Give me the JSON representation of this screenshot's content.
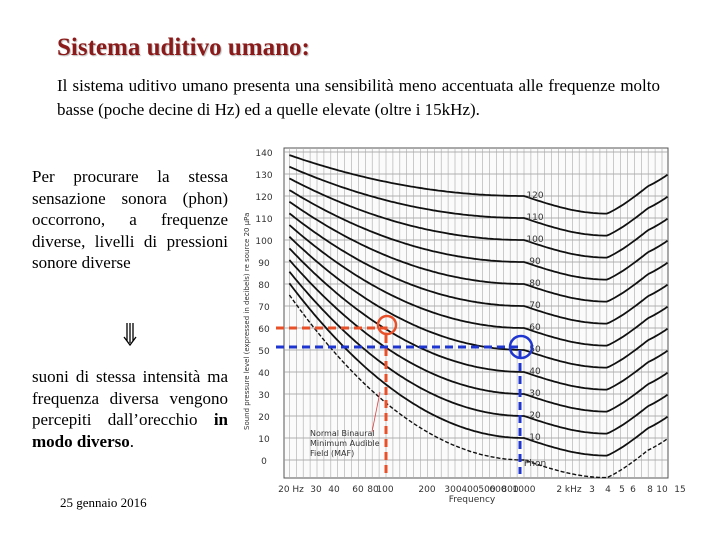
{
  "title": "Sistema uditivo umano:",
  "intro": "Il sistema uditivo umano presenta una sensibilità meno accentuata alle frequenze molto basse (poche decine di Hz) ed a quelle elevate (oltre i 15kHz).",
  "left_text_1": "Per procurare la stessa sensazione sonora (phon) occorrono, a frequenze diverse, livelli di pressioni sonore diverse",
  "left_text_2": {
    "normal": "suoni di stessa intensità ma frequenza diversa vengono percepiti dall’orecchio ",
    "bold": "in modo diverso",
    "end": "."
  },
  "footer_date": "25 gennaio 2016",
  "figure": {
    "y_ticks": [
      "140",
      "130",
      "120",
      "110",
      "100",
      "90",
      "80",
      "70",
      "60",
      "50",
      "40",
      "30",
      "20",
      "10",
      "0"
    ],
    "phon_labels": [
      "120",
      "110",
      "100",
      "90",
      "80",
      "70",
      "60",
      "50",
      "40",
      "30",
      "20",
      "10"
    ],
    "phon_unit": "Phon",
    "x_ticks": [
      "20 Hz",
      "30",
      "40",
      "60",
      "80",
      "100",
      "200",
      "300",
      "400",
      "500",
      "600",
      "800",
      "1000",
      "2 kHz",
      "3",
      "4",
      "5",
      "6",
      "8",
      "10",
      "15"
    ],
    "x_label": "Frequency",
    "y_label": "Sound pressure level (expressed in decibels) re source 20 µPa",
    "maf_label": [
      "Normal Binaural",
      "Minimum Audible",
      "Field (MAF)"
    ]
  }
}
